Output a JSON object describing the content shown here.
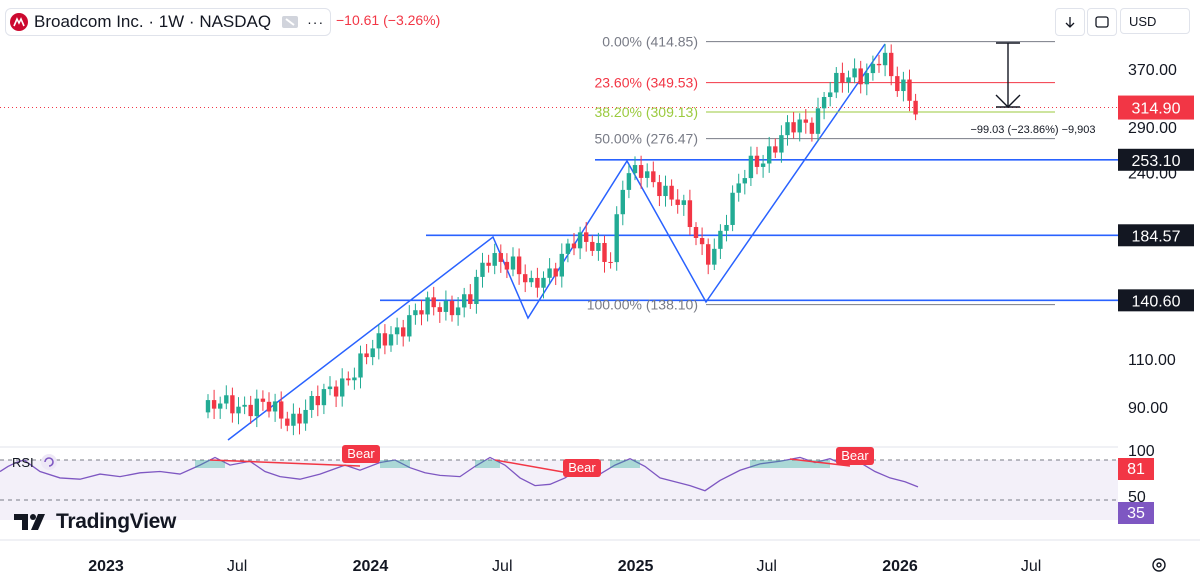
{
  "header": {
    "title": "Broadcom Inc. · 1W · NASDAQ",
    "change": "−10.61 (−3.26%)",
    "currency": "USD"
  },
  "brand": {
    "name": "TradingView"
  },
  "rsi": {
    "label": "RSI",
    "levels": [
      "100",
      "50"
    ],
    "value_a": "81",
    "value_b": "35"
  },
  "colors": {
    "up": "#22ab94",
    "down": "#f23645",
    "blue": "#2962ff",
    "fib_red": "#f23645",
    "fib_green": "#9bca3e",
    "fib_gray": "#787b86",
    "rsi_line": "#7e57c2"
  },
  "chart_data": {
    "type": "candlestick",
    "symbol": "Broadcom Inc. · 1W · NASDAQ",
    "x_ticks": [
      "2023",
      "Jul",
      "2024",
      "Jul",
      "2025",
      "Jul",
      "2026",
      "Jul"
    ],
    "y_ticks": [
      "370.00",
      "290.00",
      "240.00",
      "110.00",
      "90.00"
    ],
    "last_price": "314.90",
    "price_levels": [
      {
        "label": "253.10",
        "value": 253.1
      },
      {
        "label": "184.57",
        "value": 184.57
      },
      {
        "label": "140.60",
        "value": 140.6
      }
    ],
    "fibonacci": [
      {
        "label": "0.00% (414.85)",
        "value": 414.85,
        "color": "gray"
      },
      {
        "label": "23.60% (349.53)",
        "value": 349.53,
        "color": "red"
      },
      {
        "label": "38.20% (309.13)",
        "value": 309.13,
        "color": "green"
      },
      {
        "label": "50.00% (276.47)",
        "value": 276.47,
        "color": "gray"
      },
      {
        "label": "100.00% (138.10)",
        "value": 138.1,
        "color": "gray"
      }
    ],
    "measure": "−99.03 (−23.86%) −9,903",
    "rsi_annotations": [
      "Bear",
      "Bear",
      "Bear"
    ]
  }
}
